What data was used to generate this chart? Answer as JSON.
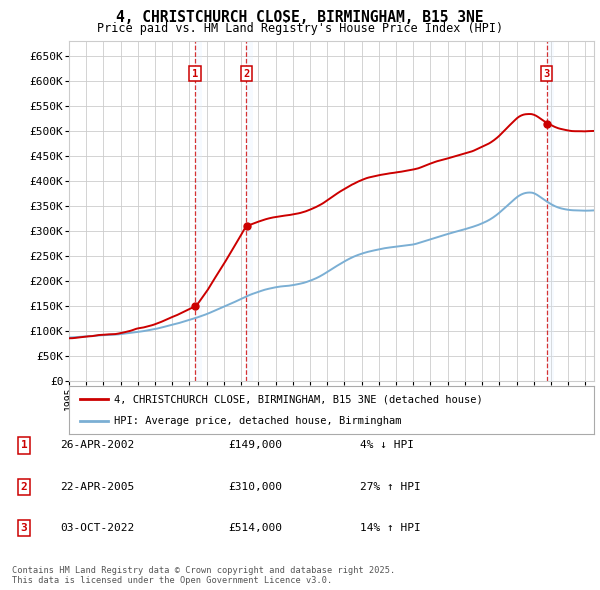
{
  "title": "4, CHRISTCHURCH CLOSE, BIRMINGHAM, B15 3NE",
  "subtitle": "Price paid vs. HM Land Registry's House Price Index (HPI)",
  "ylim": [
    0,
    680000
  ],
  "yticks": [
    0,
    50000,
    100000,
    150000,
    200000,
    250000,
    300000,
    350000,
    400000,
    450000,
    500000,
    550000,
    600000,
    650000
  ],
  "ytick_labels": [
    "£0",
    "£50K",
    "£100K",
    "£150K",
    "£200K",
    "£250K",
    "£300K",
    "£350K",
    "£400K",
    "£450K",
    "£500K",
    "£550K",
    "£600K",
    "£650K"
  ],
  "xlim_start": 1995.0,
  "xlim_end": 2025.5,
  "background_color": "#ffffff",
  "grid_color": "#cccccc",
  "plot_bg_color": "#ffffff",
  "hpi_line_color": "#7bafd4",
  "price_line_color": "#cc0000",
  "sale_marker_color": "#cc0000",
  "shade_color": "#ddeeff",
  "transactions": [
    {
      "label": "1",
      "date_num": 2002.32,
      "price": 149000,
      "date_str": "26-APR-2002",
      "price_str": "£149,000"
    },
    {
      "label": "2",
      "date_num": 2005.31,
      "price": 310000,
      "date_str": "22-APR-2005",
      "price_str": "£310,000"
    },
    {
      "label": "3",
      "date_num": 2022.75,
      "price": 514000,
      "date_str": "03-OCT-2022",
      "price_str": "£514,000"
    }
  ],
  "legend_label_price": "4, CHRISTCHURCH CLOSE, BIRMINGHAM, B15 3NE (detached house)",
  "legend_label_hpi": "HPI: Average price, detached house, Birmingham",
  "footer": "Contains HM Land Registry data © Crown copyright and database right 2025.\nThis data is licensed under the Open Government Licence v3.0.",
  "table_rows": [
    [
      "1",
      "26-APR-2002",
      "£149,000",
      "4% ↓ HPI"
    ],
    [
      "2",
      "22-APR-2005",
      "£310,000",
      "27% ↑ HPI"
    ],
    [
      "3",
      "03-OCT-2022",
      "£514,000",
      "14% ↑ HPI"
    ]
  ]
}
